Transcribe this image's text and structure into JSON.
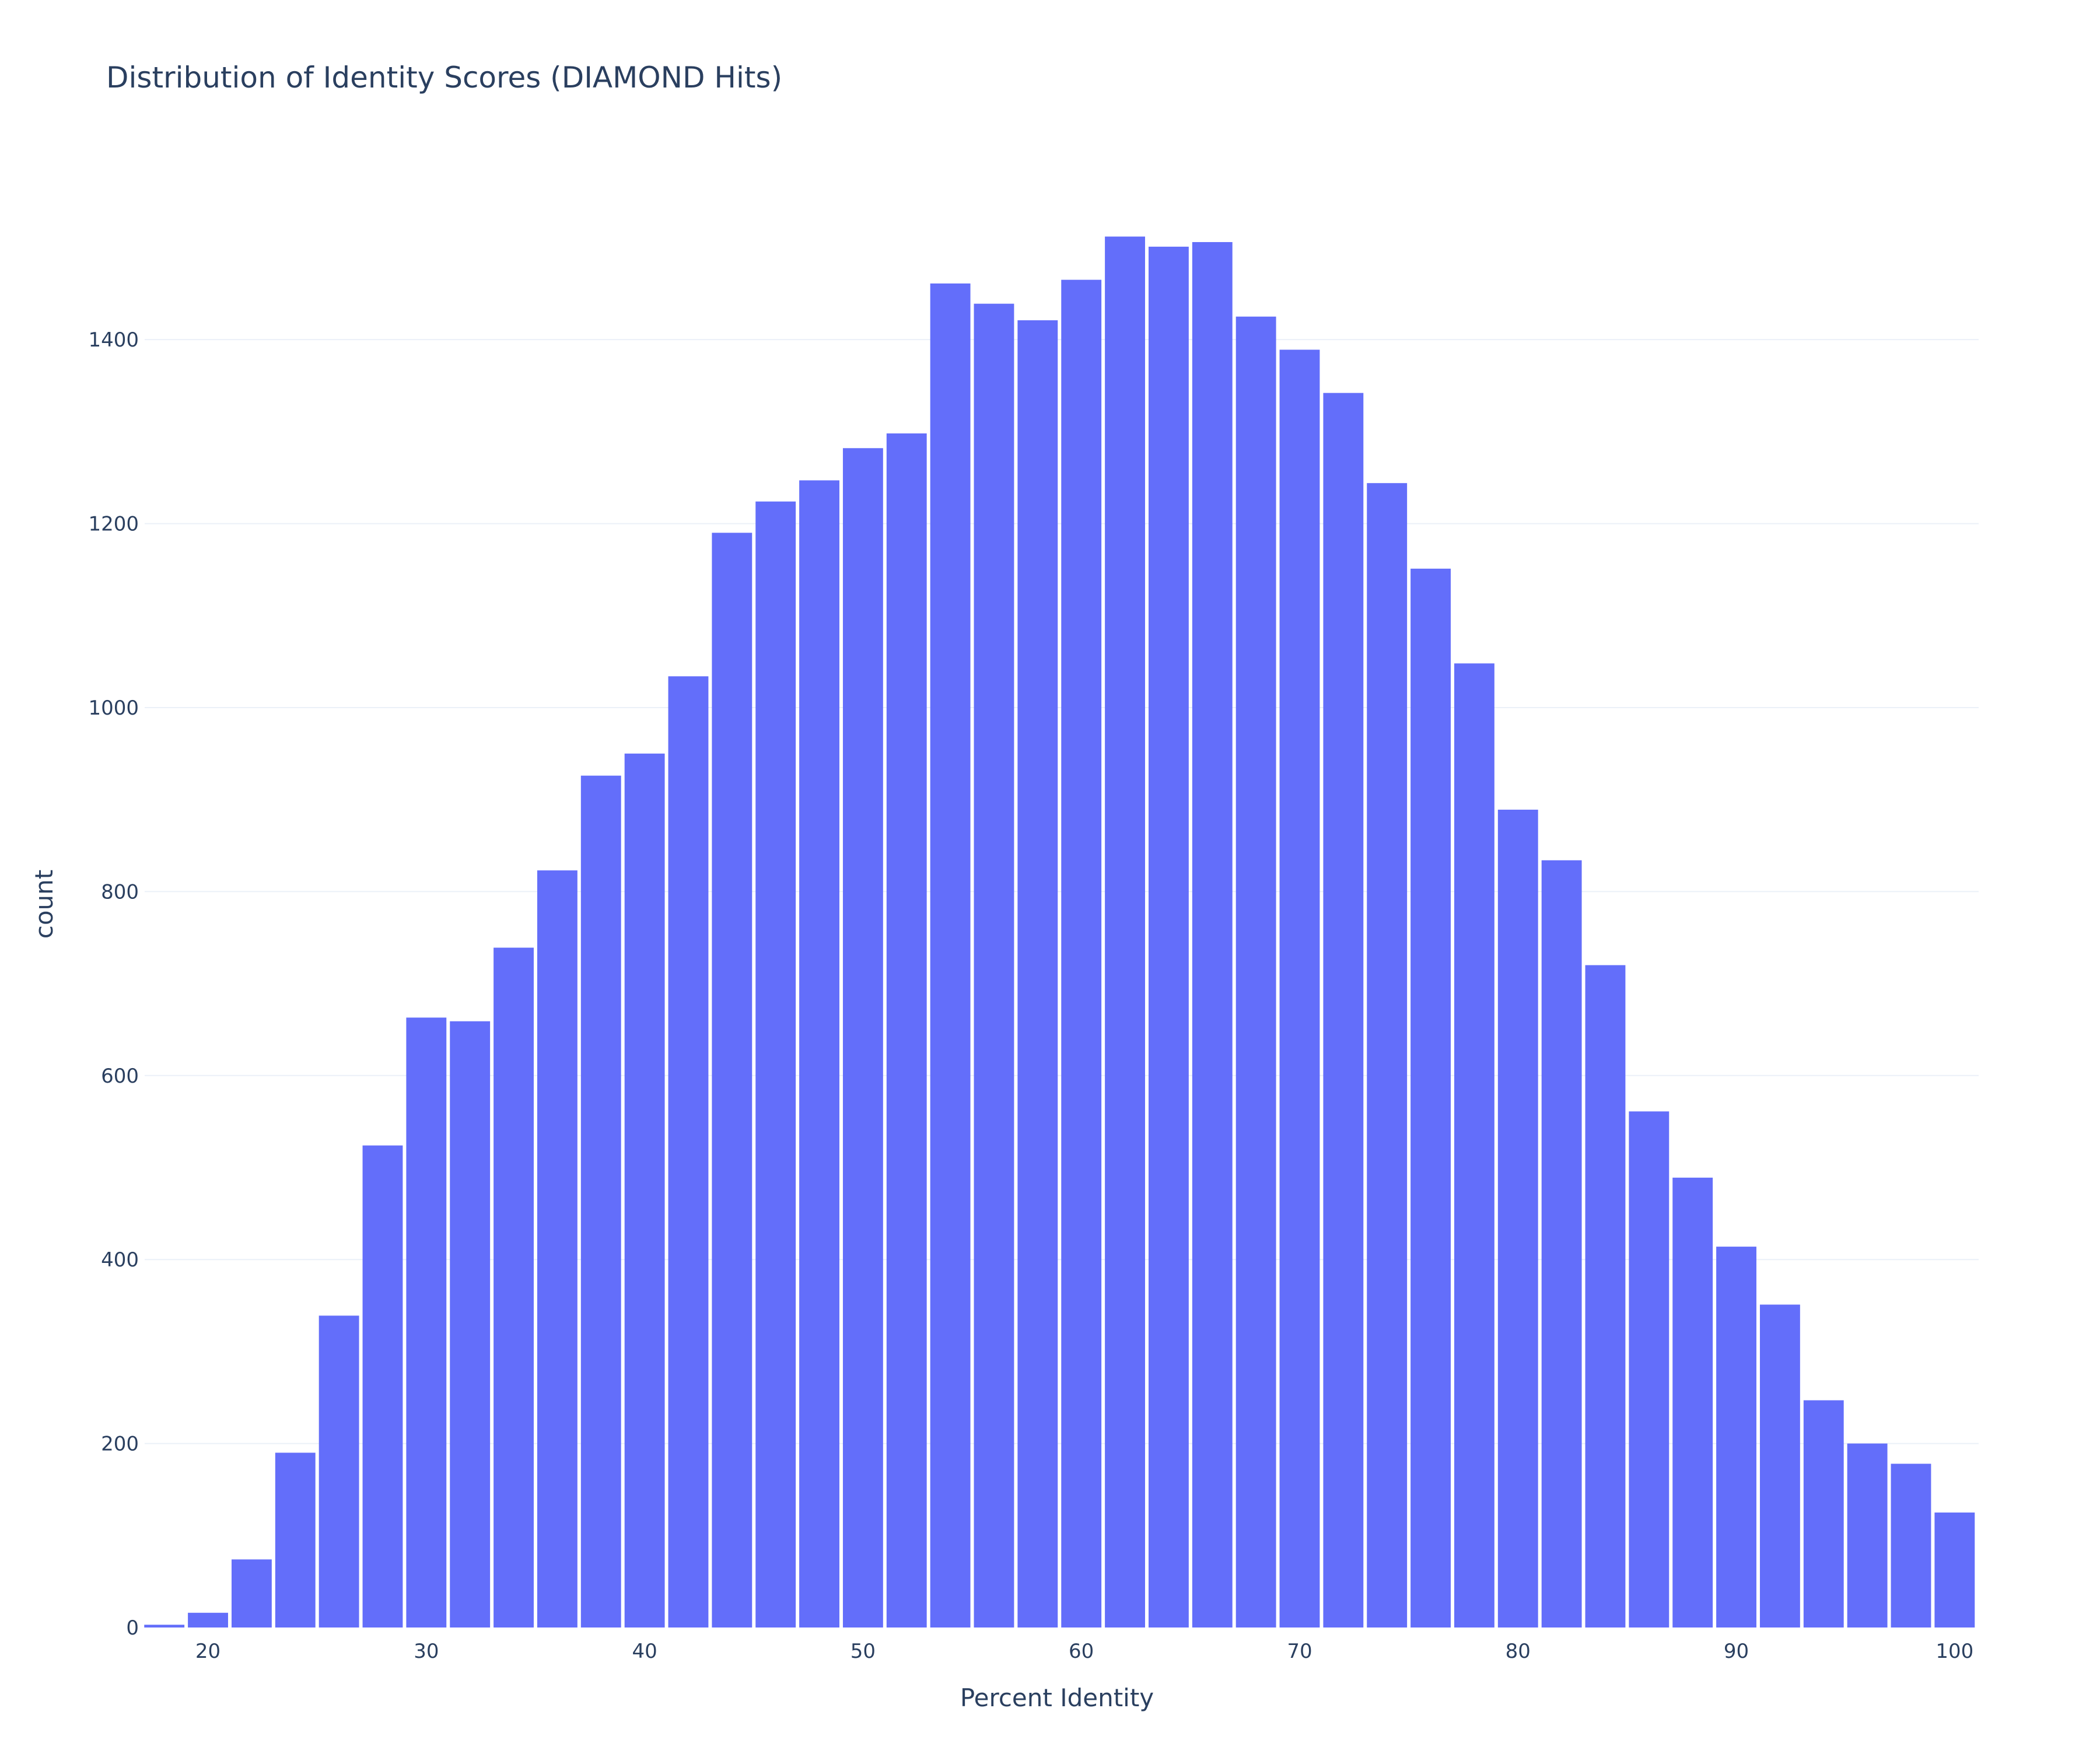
{
  "chart_data": {
    "type": "bar",
    "title": "Distribution of Identity Scores (DIAMOND Hits)",
    "xlabel": "Percent Identity",
    "ylabel": "count",
    "bin_width": 2,
    "x": [
      18,
      20,
      22,
      24,
      26,
      28,
      30,
      32,
      34,
      36,
      38,
      40,
      42,
      44,
      46,
      48,
      50,
      52,
      54,
      56,
      58,
      60,
      62,
      64,
      66,
      68,
      70,
      72,
      74,
      76,
      78,
      80,
      82,
      84,
      86,
      88,
      90,
      92,
      94,
      96,
      98,
      100
    ],
    "values": [
      3,
      16,
      74,
      190,
      339,
      524,
      663,
      659,
      739,
      823,
      926,
      950,
      1034,
      1190,
      1224,
      1247,
      1282,
      1298,
      1461,
      1439,
      1421,
      1465,
      1512,
      1501,
      1506,
      1425,
      1389,
      1342,
      1244,
      1151,
      1048,
      889,
      834,
      720,
      561,
      489,
      414,
      351,
      247,
      200,
      178,
      125
    ],
    "xlim": [
      17.1,
      101.1
    ],
    "ylim": [
      0,
      1591.6
    ],
    "x_ticks": [
      20,
      30,
      40,
      50,
      60,
      70,
      80,
      90,
      100
    ],
    "y_ticks": [
      0,
      200,
      400,
      600,
      800,
      1000,
      1200,
      1400
    ],
    "grid": true,
    "legend": "none",
    "bar_color": "#636efa",
    "grid_color": "#ebf0f8",
    "text_color": "#2a3f5f",
    "background": "#ffffff"
  }
}
